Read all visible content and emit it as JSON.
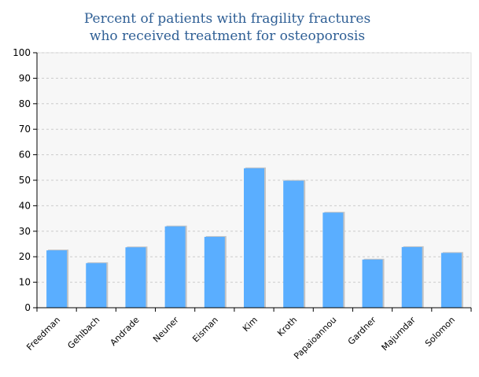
{
  "chart_data": {
    "type": "bar",
    "title": [
      "Percent of patients with fragility fractures",
      "who received treatment for osteoporosis"
    ],
    "categories": [
      "Freedman",
      "Gehlbach",
      "Andrade",
      "Neuner",
      "Eisman",
      "Kim",
      "Kroth",
      "Papaioannou",
      "Gardner",
      "Majumdar",
      "Solomon"
    ],
    "values": [
      22.5,
      17.5,
      23.7,
      31.9,
      27.8,
      54.7,
      49.8,
      37.3,
      18.9,
      23.8,
      21.5
    ],
    "ylim": [
      0,
      100
    ],
    "yticks": [
      "0",
      "10",
      "20",
      "30",
      "40",
      "50",
      "60",
      "70",
      "80",
      "90",
      "100"
    ],
    "xlabel": "",
    "ylabel": "",
    "grid": true,
    "colors": {
      "bar": "#5aaeff",
      "bar_shadow": "#c4c4c4",
      "plot_background": "#f7f7f7",
      "gridline": "#cccccc",
      "title": "#2f5f95"
    }
  }
}
